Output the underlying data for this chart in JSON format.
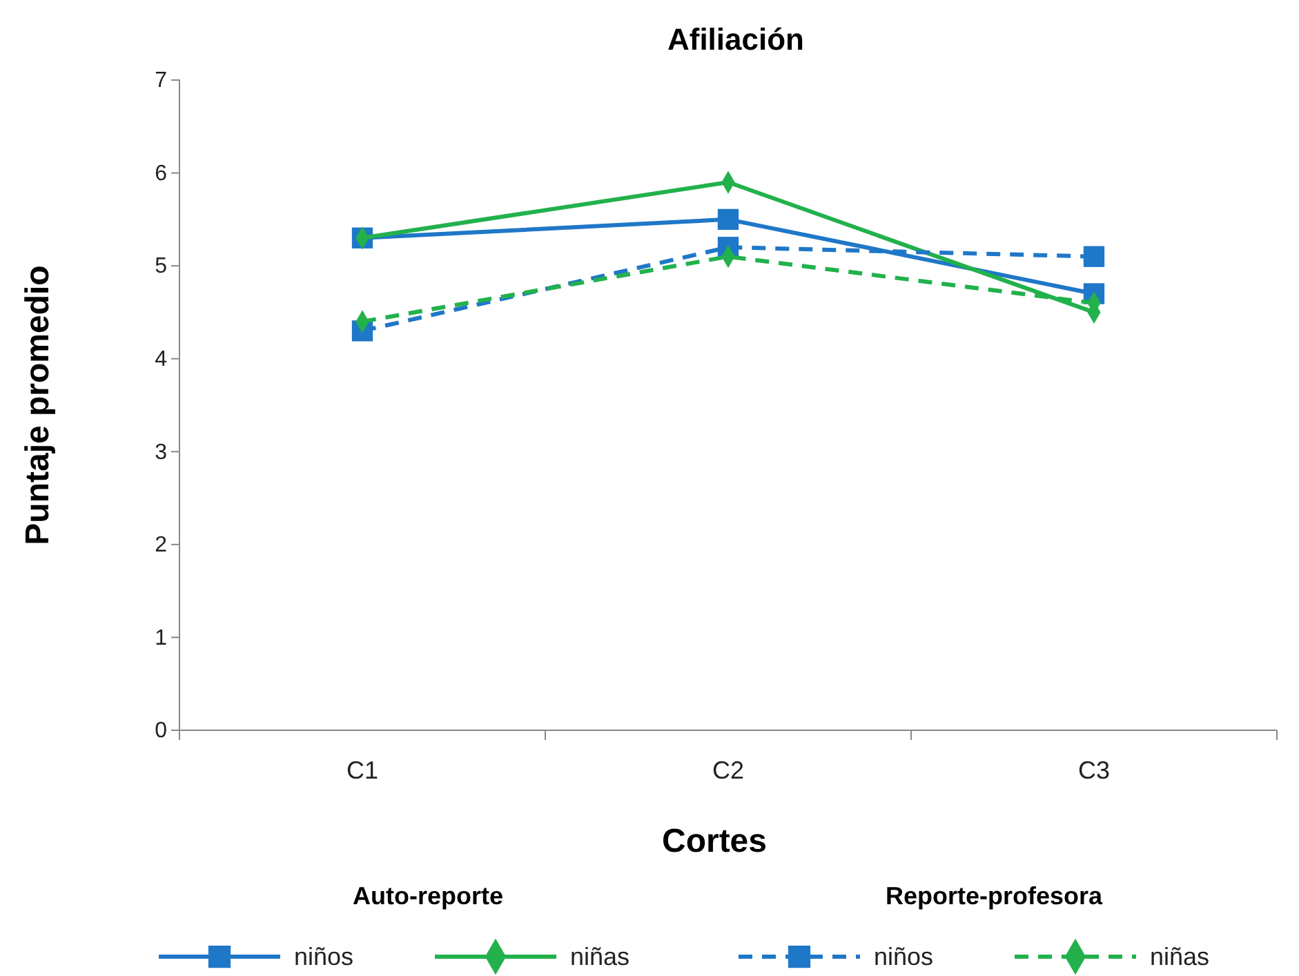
{
  "chart_data": {
    "type": "line",
    "title": "Afiliación",
    "xlabel": "Cortes",
    "ylabel": "Puntaje promedio",
    "categories": [
      "C1",
      "C2",
      "C3"
    ],
    "ylim": [
      0,
      7
    ],
    "yticks": [
      0,
      1,
      2,
      3,
      4,
      5,
      6,
      7
    ],
    "grid": false,
    "legend": "bottom",
    "annotations": [
      "Auto-reporte",
      "Reporte-profesora"
    ],
    "series": [
      {
        "name": "niños",
        "color": "#1f77c8",
        "values": [
          5.3,
          5.5,
          4.7
        ],
        "marker": "square",
        "line_style": "solid"
      },
      {
        "name": "niñas",
        "color": "#22b14c",
        "values": [
          5.3,
          5.9,
          4.5
        ],
        "marker": "diamond",
        "line_style": "solid"
      },
      {
        "name": "niños",
        "color": "#1f77c8",
        "values": [
          4.3,
          5.2,
          5.1
        ],
        "marker": "square",
        "line_style": "dashed"
      },
      {
        "name": "niñas",
        "color": "#22b14c",
        "values": [
          4.4,
          5.1,
          4.6
        ],
        "marker": "diamond",
        "line_style": "dashed"
      }
    ]
  }
}
